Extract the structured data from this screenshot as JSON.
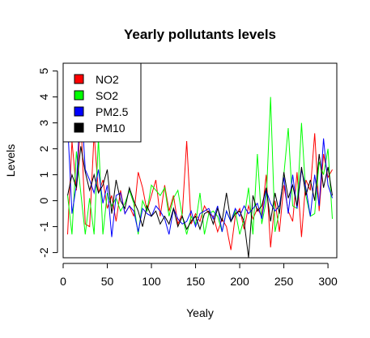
{
  "chart_data": {
    "type": "line",
    "title": "Yearly pollutants levels",
    "xlabel": "Yealy",
    "ylabel": "Levels",
    "xlim": [
      0,
      310
    ],
    "ylim": [
      -2.2,
      5.3
    ],
    "xticks": [
      0,
      50,
      100,
      150,
      200,
      250,
      300
    ],
    "yticks": [
      -2,
      -1,
      0,
      1,
      2,
      3,
      4,
      5
    ],
    "legend_position": "top-left",
    "grid": false,
    "x": [
      5,
      10,
      15,
      20,
      25,
      30,
      35,
      40,
      45,
      50,
      55,
      60,
      65,
      70,
      75,
      80,
      85,
      90,
      95,
      100,
      105,
      110,
      115,
      120,
      125,
      130,
      135,
      140,
      145,
      150,
      155,
      160,
      165,
      170,
      175,
      180,
      185,
      190,
      195,
      200,
      205,
      210,
      215,
      220,
      225,
      230,
      235,
      240,
      245,
      250,
      255,
      260,
      265,
      270,
      275,
      280,
      285,
      290,
      295,
      300,
      305
    ],
    "series": [
      {
        "name": "NO2",
        "color": "#ff0000",
        "values": [
          -1.3,
          2.3,
          0.4,
          3.2,
          -0.9,
          -1.0,
          2.6,
          0.3,
          0.8,
          -0.3,
          0.2,
          -0.8,
          0.4,
          -0.5,
          -0.2,
          -0.6,
          1.1,
          0.5,
          -0.4,
          0.2,
          0.8,
          -0.6,
          0.6,
          -0.4,
          0.2,
          -0.9,
          -0.5,
          2.3,
          -0.9,
          -0.5,
          -0.8,
          -0.2,
          -0.5,
          -0.6,
          -1.2,
          -0.7,
          -1.0,
          -1.9,
          -0.6,
          -0.3,
          -1.1,
          -0.2,
          -0.7,
          -0.3,
          -0.6,
          1.0,
          -1.8,
          0.0,
          -1.2,
          0.6,
          -0.4,
          -0.8,
          1.1,
          -1.4,
          0.8,
          0.4,
          2.6,
          -0.4,
          1.8,
          0.9,
          1.2
        ]
      },
      {
        "name": "SO2",
        "color": "#00ff00",
        "values": [
          0.2,
          -1.3,
          1.9,
          0.3,
          -1.3,
          0.1,
          -1.3,
          2.4,
          -1.3,
          0.3,
          -0.2,
          0.1,
          -0.4,
          -0.1,
          0.4,
          -0.1,
          -1.3,
          0.0,
          -0.4,
          0.6,
          0.4,
          0.2,
          0.5,
          -0.6,
          0.1,
          0.4,
          -0.6,
          -1.3,
          -0.6,
          -0.9,
          0.3,
          -1.3,
          -0.5,
          -0.4,
          -0.6,
          -1.2,
          -0.4,
          -0.8,
          -0.4,
          -1.3,
          -0.7,
          0.5,
          -1.3,
          1.8,
          -0.9,
          0.0,
          4.0,
          -1.2,
          -0.4,
          1.0,
          2.8,
          -0.2,
          -0.3,
          3.0,
          0.2,
          -0.6,
          -0.5,
          1.5,
          1.0,
          2.0,
          -0.7
        ]
      },
      {
        "name": "PM2.5",
        "color": "#0000ff",
        "values": [
          3.0,
          -0.5,
          0.6,
          4.1,
          1.2,
          0.8,
          0.3,
          1.2,
          -0.1,
          0.6,
          -1.4,
          0.2,
          0.3,
          -0.5,
          -0.2,
          -0.4,
          -1.2,
          -0.3,
          -0.5,
          -0.6,
          -0.2,
          -0.4,
          -0.7,
          -1.3,
          -0.3,
          -0.7,
          -0.9,
          -0.8,
          -0.4,
          -1.0,
          -0.5,
          -0.4,
          -0.3,
          -0.7,
          -0.2,
          -1.2,
          -0.4,
          -0.8,
          -0.3,
          -0.6,
          -0.2,
          -0.5,
          -0.3,
          -0.1,
          -0.7,
          0.4,
          -0.1,
          -0.4,
          -0.2,
          0.9,
          -0.5,
          1.0,
          -0.3,
          1.2,
          0.5,
          -0.6,
          1.0,
          -0.2,
          2.4,
          0.6,
          0.1
        ]
      },
      {
        "name": "PM10",
        "color": "#000000",
        "values": [
          0.2,
          1.0,
          0.5,
          2.1,
          1.1,
          0.4,
          1.0,
          0.3,
          0.6,
          1.2,
          -0.5,
          0.8,
          0.0,
          -0.3,
          0.5,
          0.0,
          -0.4,
          -1.0,
          -0.2,
          -0.6,
          -0.4,
          -0.9,
          -0.6,
          -0.9,
          -0.3,
          -1.0,
          -0.6,
          -1.1,
          -0.8,
          -0.6,
          -1.1,
          -0.5,
          -0.4,
          -0.9,
          -0.3,
          -0.8,
          0.3,
          -0.8,
          -0.5,
          -0.4,
          -0.8,
          -2.2,
          0.2,
          -0.4,
          -0.2,
          0.5,
          -0.8,
          0.3,
          -0.5,
          1.1,
          0.1,
          0.6,
          -0.2,
          1.3,
          0.2,
          0.8,
          0.0,
          1.8,
          0.5,
          1.3,
          0.2
        ]
      }
    ]
  }
}
